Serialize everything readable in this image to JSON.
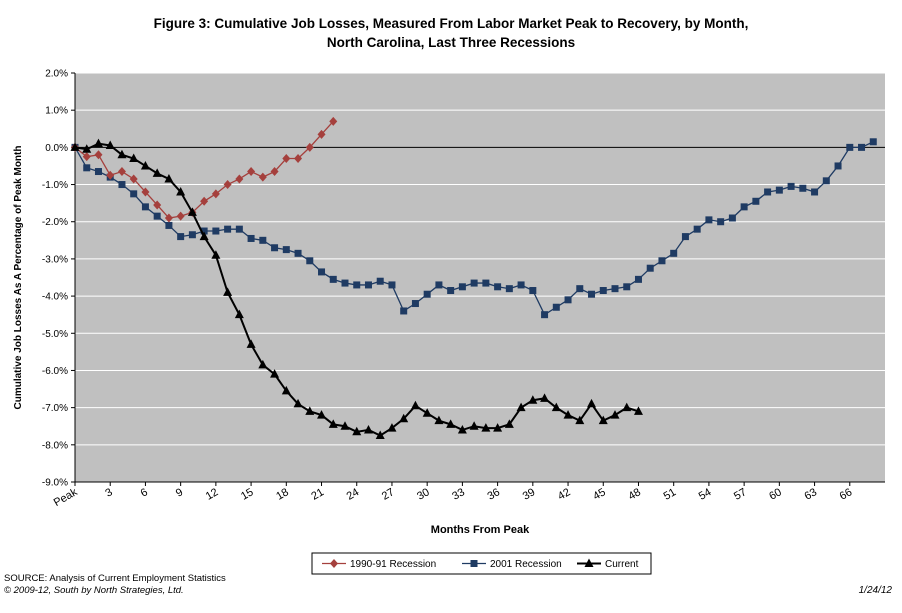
{
  "title_line1": "Figure 3: Cumulative Job Losses, Measured From Labor Market Peak to Recovery, by Month,",
  "title_line2": "North Carolina, Last Three Recessions",
  "source_line1": "SOURCE: Analysis of Current Employment Statistics",
  "source_line2": "© 2009-12, South by North Strategies, Ltd.",
  "date_stamp": "1/24/12",
  "colors": {
    "plot_bg": "#c0c0c0",
    "grid": "#ffffff",
    "series_1990": "#a5403d",
    "series_2001": "#1f3b63",
    "series_current": "#000000"
  },
  "chart_data": {
    "type": "line",
    "title": "Figure 3: Cumulative Job Losses, Measured From Labor Market Peak to Recovery, by Month, North Carolina, Last Three Recessions",
    "xlabel": "Months From Peak",
    "ylabel": "Cumulative Job Losses As A Percentage of Peak Month",
    "xlim": [
      0,
      69
    ],
    "ylim": [
      -9,
      2
    ],
    "x_ticks": [
      0,
      3,
      6,
      9,
      12,
      15,
      18,
      21,
      24,
      27,
      30,
      33,
      36,
      39,
      42,
      45,
      48,
      51,
      54,
      57,
      60,
      63,
      66
    ],
    "x_tick_labels": [
      "Peak",
      "3",
      "6",
      "9",
      "12",
      "15",
      "18",
      "21",
      "24",
      "27",
      "30",
      "33",
      "36",
      "39",
      "42",
      "45",
      "48",
      "51",
      "54",
      "57",
      "60",
      "63",
      "66"
    ],
    "y_ticks": [
      2,
      1,
      0,
      -1,
      -2,
      -3,
      -4,
      -5,
      -6,
      -7,
      -8,
      -9
    ],
    "y_tick_labels": [
      "2.0%",
      "1.0%",
      "0.0%",
      "-1.0%",
      "-2.0%",
      "-3.0%",
      "-4.0%",
      "-5.0%",
      "-6.0%",
      "-7.0%",
      "-8.0%",
      "-9.0%"
    ],
    "grid": true,
    "legend_position": "bottom",
    "series": [
      {
        "name": "1990-91 Recession",
        "marker": "diamond",
        "color": "#a5403d",
        "values": [
          0.0,
          -0.25,
          -0.2,
          -0.75,
          -0.65,
          -0.85,
          -1.2,
          -1.55,
          -1.9,
          -1.85,
          -1.75,
          -1.45,
          -1.25,
          -1.0,
          -0.85,
          -0.65,
          -0.8,
          -0.65,
          -0.3,
          -0.3,
          0.0,
          0.35,
          0.7
        ]
      },
      {
        "name": "2001 Recession",
        "marker": "square",
        "color": "#1f3b63",
        "values": [
          0.0,
          -0.55,
          -0.65,
          -0.8,
          -1.0,
          -1.25,
          -1.6,
          -1.85,
          -2.1,
          -2.4,
          -2.35,
          -2.25,
          -2.25,
          -2.2,
          -2.2,
          -2.45,
          -2.5,
          -2.7,
          -2.75,
          -2.85,
          -3.05,
          -3.35,
          -3.55,
          -3.65,
          -3.7,
          -3.7,
          -3.6,
          -3.7,
          -4.4,
          -4.2,
          -3.95,
          -3.7,
          -3.85,
          -3.75,
          -3.65,
          -3.65,
          -3.75,
          -3.8,
          -3.7,
          -3.85,
          -4.5,
          -4.3,
          -4.1,
          -3.8,
          -3.95,
          -3.85,
          -3.8,
          -3.75,
          -3.55,
          -3.25,
          -3.05,
          -2.85,
          -2.4,
          -2.2,
          -1.95,
          -2.0,
          -1.9,
          -1.6,
          -1.45,
          -1.2,
          -1.15,
          -1.05,
          -1.1,
          -1.2,
          -0.9,
          -0.5,
          0.0,
          0.0,
          0.15
        ]
      },
      {
        "name": "Current",
        "marker": "triangle",
        "color": "#000000",
        "values": [
          0.0,
          -0.05,
          0.1,
          0.05,
          -0.2,
          -0.3,
          -0.5,
          -0.7,
          -0.85,
          -1.2,
          -1.75,
          -2.4,
          -2.9,
          -3.9,
          -4.5,
          -5.3,
          -5.85,
          -6.1,
          -6.55,
          -6.9,
          -7.1,
          -7.2,
          -7.45,
          -7.5,
          -7.65,
          -7.6,
          -7.75,
          -7.55,
          -7.3,
          -6.95,
          -7.15,
          -7.35,
          -7.45,
          -7.6,
          -7.5,
          -7.55,
          -7.55,
          -7.45,
          -7.0,
          -6.8,
          -6.75,
          -7.0,
          -7.2,
          -7.35,
          -6.9,
          -7.35,
          -7.2,
          -7.0,
          -7.1
        ]
      }
    ]
  }
}
